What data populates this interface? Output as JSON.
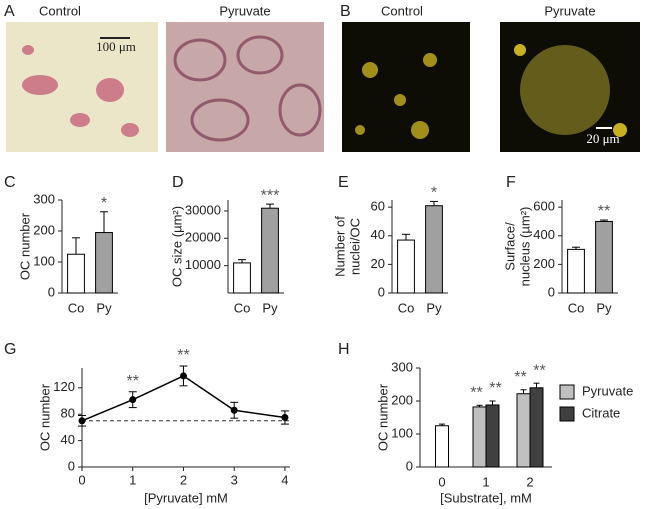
{
  "images": [
    {
      "letter": "A",
      "titles": [
        "Control",
        "Pyruvate"
      ],
      "scale_bar": "100 μm"
    },
    {
      "letter": "B",
      "titles": [
        "Control",
        "Pyruvate"
      ],
      "scale_bar": "20 μm"
    }
  ],
  "chart_data": [
    {
      "type": "bar",
      "letter": "C",
      "ylabel": "OC number",
      "categories": [
        "Co",
        "Py"
      ],
      "values": [
        125,
        195
      ],
      "errors": [
        53,
        67
      ],
      "colors": [
        "#ffffff",
        "#a0a0a0"
      ],
      "ylim": [
        0,
        300
      ],
      "yticks": [
        0,
        100,
        200,
        300
      ],
      "annotations": [
        {
          "index": 1,
          "text": "*"
        }
      ]
    },
    {
      "type": "bar",
      "letter": "D",
      "ylabel": "OC size (µm²)",
      "categories": [
        "Co",
        "Py"
      ],
      "values": [
        11000,
        31000
      ],
      "errors": [
        1200,
        1500
      ],
      "colors": [
        "#ffffff",
        "#a0a0a0"
      ],
      "ylim": [
        0,
        34000
      ],
      "yticks": [
        10000,
        20000,
        30000
      ],
      "annotations": [
        {
          "index": 1,
          "text": "***"
        }
      ]
    },
    {
      "type": "bar",
      "letter": "E",
      "ylabel": [
        "Number of",
        "nuclei/OC"
      ],
      "categories": [
        "Co",
        "Py"
      ],
      "values": [
        37,
        61
      ],
      "errors": [
        4,
        3
      ],
      "colors": [
        "#ffffff",
        "#a0a0a0"
      ],
      "ylim": [
        0,
        65
      ],
      "yticks": [
        0,
        20,
        40,
        60
      ],
      "annotations": [
        {
          "index": 1,
          "text": "*"
        }
      ]
    },
    {
      "type": "bar",
      "letter": "F",
      "ylabel": [
        "Surface/",
        "nucleus (µm²)"
      ],
      "categories": [
        "Co",
        "Py"
      ],
      "values": [
        305,
        500
      ],
      "errors": [
        15,
        10
      ],
      "colors": [
        "#ffffff",
        "#a0a0a0"
      ],
      "ylim": [
        0,
        650
      ],
      "yticks": [
        0,
        200,
        400,
        600
      ],
      "annotations": [
        {
          "index": 1,
          "text": "**"
        }
      ]
    },
    {
      "type": "line",
      "letter": "G",
      "ylabel": "OC number",
      "xlabel": "[Pyruvate] mM",
      "x": [
        0,
        1,
        2,
        3,
        4
      ],
      "values": [
        70,
        102,
        138,
        86,
        75
      ],
      "errors": [
        8,
        12,
        15,
        12,
        10
      ],
      "color": "#000000",
      "xlim": [
        0,
        4.1
      ],
      "xticks": [
        0,
        1,
        2,
        3,
        4
      ],
      "ylim": [
        0,
        150
      ],
      "yticks": [
        0,
        40,
        80,
        120
      ],
      "hline": 70,
      "annotations": [
        {
          "index": 1,
          "text": "**"
        },
        {
          "index": 2,
          "text": "**"
        }
      ]
    },
    {
      "type": "grouped_bar",
      "letter": "H",
      "ylabel": "OC number",
      "xlabel": "[Substrate], mM",
      "categories": [
        "0",
        "1",
        "2"
      ],
      "ylim": [
        0,
        300
      ],
      "yticks": [
        0,
        100,
        200,
        300
      ],
      "series": [
        {
          "color": "#ffffff",
          "values": [
            125,
            null,
            null
          ],
          "errors": [
            5,
            null,
            null
          ]
        },
        {
          "name": "Pyruvate",
          "color": "#c0c0c0",
          "values": [
            null,
            182,
            222
          ],
          "errors": [
            null,
            5,
            12
          ],
          "annotations": [
            {
              "index": 1,
              "text": "**"
            },
            {
              "index": 2,
              "text": "**"
            }
          ]
        },
        {
          "name": "Citrate",
          "color": "#404040",
          "values": [
            null,
            188,
            240
          ],
          "errors": [
            null,
            12,
            14
          ],
          "annotations": [
            {
              "index": 1,
              "text": "**"
            },
            {
              "index": 2,
              "text": "**"
            }
          ]
        }
      ]
    }
  ]
}
